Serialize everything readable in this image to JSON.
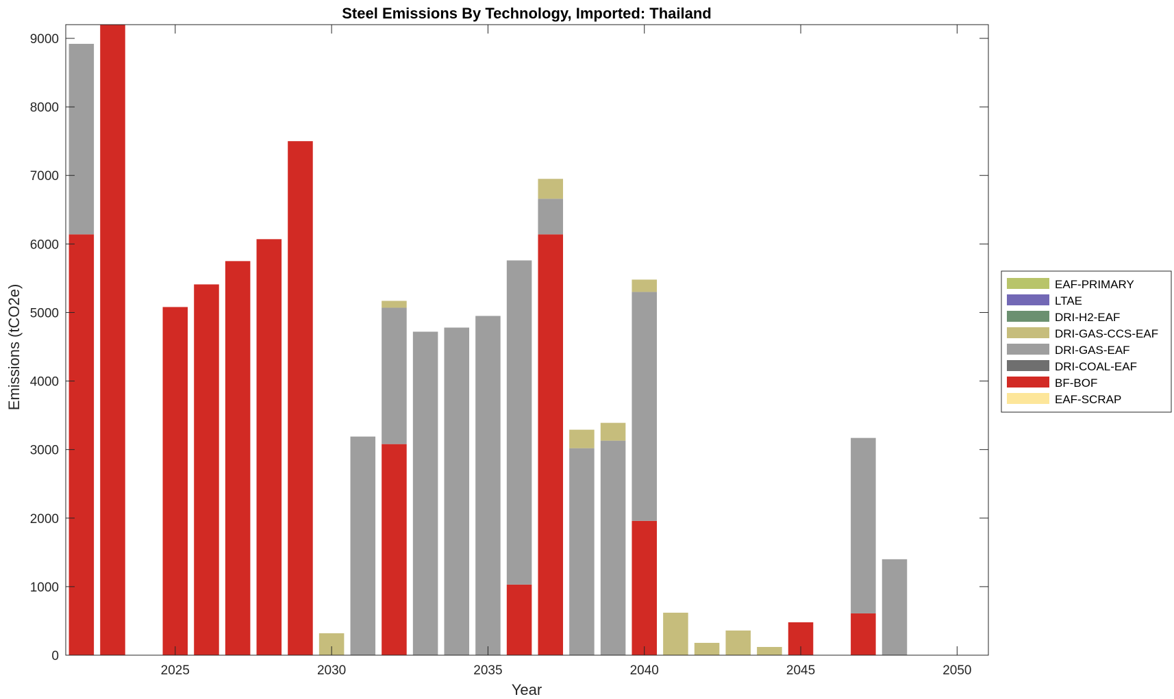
{
  "chart_data": {
    "type": "bar",
    "stacked": true,
    "title": "Steel Emissions By Technology, Imported: Thailand",
    "xlabel": "Year",
    "ylabel": "Emissions (tCO2e)",
    "xlim": [
      2021.5,
      2051
    ],
    "ylim": [
      0,
      9200
    ],
    "xticks": [
      2025,
      2030,
      2035,
      2040,
      2045,
      2050
    ],
    "yticks": [
      0,
      1000,
      2000,
      3000,
      4000,
      5000,
      6000,
      7000,
      8000,
      9000
    ],
    "grid": false,
    "legend_position": "right",
    "categories": [
      2022,
      2023,
      2024,
      2025,
      2026,
      2027,
      2028,
      2029,
      2030,
      2031,
      2032,
      2033,
      2034,
      2035,
      2036,
      2037,
      2038,
      2039,
      2040,
      2041,
      2042,
      2043,
      2044,
      2045,
      2046,
      2047,
      2048,
      2049,
      2050
    ],
    "series": [
      {
        "name": "EAF-SCRAP",
        "color": "#fde69a",
        "values": [
          0,
          0,
          0,
          0,
          0,
          0,
          0,
          0,
          0,
          0,
          0,
          0,
          0,
          0,
          0,
          0,
          0,
          0,
          0,
          0,
          0,
          0,
          0,
          0,
          0,
          0,
          0,
          0,
          0
        ]
      },
      {
        "name": "BF-BOF",
        "color": "#d22a24",
        "values": [
          6140,
          9400,
          0,
          5080,
          5410,
          5750,
          6070,
          7500,
          0,
          0,
          3080,
          0,
          0,
          0,
          1030,
          6140,
          0,
          0,
          1960,
          0,
          0,
          0,
          0,
          480,
          0,
          610,
          0,
          0,
          0
        ]
      },
      {
        "name": "DRI-COAL-EAF",
        "color": "#6f6f6f",
        "values": [
          0,
          0,
          0,
          0,
          0,
          0,
          0,
          0,
          0,
          0,
          0,
          0,
          0,
          0,
          0,
          0,
          0,
          0,
          0,
          0,
          0,
          0,
          0,
          0,
          0,
          0,
          0,
          0,
          0
        ]
      },
      {
        "name": "DRI-GAS-EAF",
        "color": "#9e9e9e",
        "values": [
          2780,
          0,
          0,
          0,
          0,
          0,
          0,
          0,
          0,
          3190,
          1990,
          4720,
          4780,
          4950,
          4730,
          520,
          3020,
          3130,
          3340,
          0,
          0,
          0,
          0,
          0,
          0,
          2560,
          1400,
          0,
          0
        ]
      },
      {
        "name": "DRI-GAS-CCS-EAF",
        "color": "#c6bd7c",
        "values": [
          0,
          0,
          0,
          0,
          0,
          0,
          0,
          0,
          320,
          0,
          100,
          0,
          0,
          0,
          0,
          290,
          270,
          260,
          180,
          620,
          180,
          360,
          120,
          0,
          0,
          0,
          0,
          0,
          0
        ]
      },
      {
        "name": "DRI-H2-EAF",
        "color": "#6b9070",
        "values": [
          0,
          0,
          0,
          0,
          0,
          0,
          0,
          0,
          0,
          0,
          0,
          0,
          0,
          0,
          0,
          0,
          0,
          0,
          0,
          0,
          0,
          0,
          0,
          0,
          0,
          0,
          0,
          0,
          0
        ]
      },
      {
        "name": "LTAE",
        "color": "#7268b5",
        "values": [
          0,
          0,
          0,
          0,
          0,
          0,
          0,
          0,
          0,
          0,
          0,
          0,
          0,
          0,
          0,
          0,
          0,
          0,
          0,
          0,
          0,
          0,
          0,
          0,
          0,
          0,
          0,
          0,
          0
        ]
      },
      {
        "name": "EAF-PRIMARY",
        "color": "#b8c46a",
        "values": [
          0,
          0,
          0,
          0,
          0,
          0,
          0,
          0,
          0,
          0,
          0,
          0,
          0,
          0,
          0,
          0,
          0,
          0,
          0,
          0,
          0,
          0,
          0,
          0,
          0,
          0,
          0,
          0,
          0
        ]
      }
    ],
    "legend_order": [
      "EAF-PRIMARY",
      "LTAE",
      "DRI-H2-EAF",
      "DRI-GAS-CCS-EAF",
      "DRI-GAS-EAF",
      "DRI-COAL-EAF",
      "BF-BOF",
      "EAF-SCRAP"
    ]
  }
}
